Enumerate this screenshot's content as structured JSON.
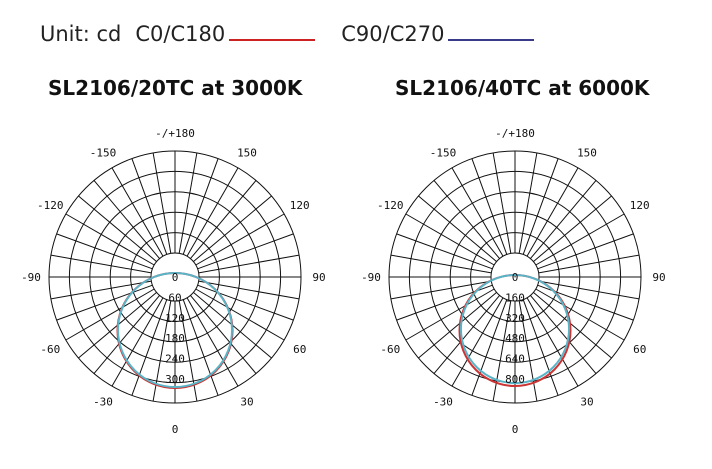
{
  "legend": {
    "unit": "Unit: cd",
    "entries": [
      {
        "label": "C0/C180",
        "color": "#cc2222"
      },
      {
        "label": "C90/C270",
        "color": "#3a3a8a"
      }
    ]
  },
  "chart_data": [
    {
      "type": "polar",
      "title": "SL2106/20TC at 3000K",
      "angle_labels": [
        {
          "angle": 180,
          "label": "-/+180"
        },
        {
          "angle": 150,
          "label": "150"
        },
        {
          "angle": -150,
          "label": "-150"
        },
        {
          "angle": 120,
          "label": "120"
        },
        {
          "angle": -120,
          "label": "-120"
        },
        {
          "angle": 90,
          "label": "90"
        },
        {
          "angle": -90,
          "label": "-90"
        },
        {
          "angle": 60,
          "label": "60"
        },
        {
          "angle": -60,
          "label": "-60"
        },
        {
          "angle": 30,
          "label": "30"
        },
        {
          "angle": -30,
          "label": "-30"
        },
        {
          "angle": 0,
          "label": "0"
        }
      ],
      "radial_ticks": [
        "0",
        "60",
        "120",
        "180",
        "240",
        "300"
      ],
      "rmax": 300,
      "series": [
        {
          "name": "C0/C180",
          "color": "#cc3333",
          "max_cd": 300
        },
        {
          "name": "C90/C270",
          "color": "#5ab4c8",
          "max_cd": 300
        }
      ]
    },
    {
      "type": "polar",
      "title": "SL2106/40TC at 6000K",
      "angle_labels": [
        {
          "angle": 180,
          "label": "-/+180"
        },
        {
          "angle": 150,
          "label": "150"
        },
        {
          "angle": -150,
          "label": "-150"
        },
        {
          "angle": 120,
          "label": "120"
        },
        {
          "angle": -120,
          "label": "-120"
        },
        {
          "angle": 90,
          "label": "90"
        },
        {
          "angle": -90,
          "label": "-90"
        },
        {
          "angle": 60,
          "label": "60"
        },
        {
          "angle": -60,
          "label": "-60"
        },
        {
          "angle": 30,
          "label": "30"
        },
        {
          "angle": -30,
          "label": "-30"
        },
        {
          "angle": 0,
          "label": "0"
        }
      ],
      "radial_ticks": [
        "0",
        "160",
        "320",
        "480",
        "640",
        "800"
      ],
      "rmax": 800,
      "series": [
        {
          "name": "C0/C180",
          "color": "#cc3333",
          "max_cd": 800
        },
        {
          "name": "C90/C270",
          "color": "#5ab4c8",
          "max_cd": 785
        }
      ]
    }
  ]
}
